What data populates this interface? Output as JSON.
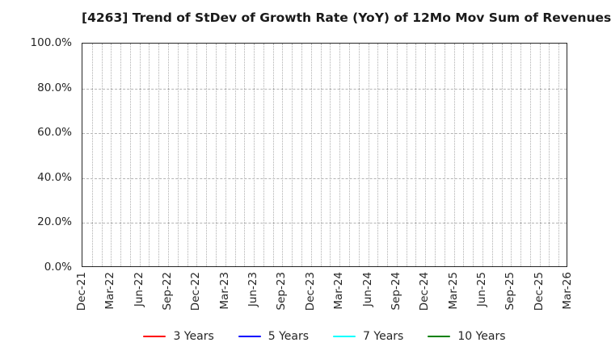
{
  "title": "[4263]  Trend of StDev of Growth Rate (YoY) of 12Mo Mov Sum of Revenues",
  "chart_data": {
    "type": "line",
    "title": "[4263]  Trend of StDev of Growth Rate (YoY) of 12Mo Mov Sum of Revenues",
    "x_tick_labels": [
      "Dec-21",
      "Mar-22",
      "Jun-22",
      "Sep-22",
      "Dec-22",
      "Mar-23",
      "Jun-23",
      "Sep-23",
      "Dec-23",
      "Mar-24",
      "Jun-24",
      "Sep-24",
      "Dec-24",
      "Mar-25",
      "Jun-25",
      "Sep-25",
      "Dec-25",
      "Mar-26"
    ],
    "x_minor_gridlines_per_label_interval": 3,
    "y_tick_labels": [
      "100.0%",
      "80.0%",
      "60.0%",
      "40.0%",
      "20.0%",
      "0.0%"
    ],
    "ylim": [
      0.0,
      100.0
    ],
    "ylabel": "",
    "xlabel": "",
    "grid": true,
    "legend_position": "bottom-center",
    "series": [
      {
        "name": "3 Years",
        "color": "#ff0000",
        "values": []
      },
      {
        "name": "5 Years",
        "color": "#0000ff",
        "values": []
      },
      {
        "name": "7 Years",
        "color": "#00ffff",
        "values": []
      },
      {
        "name": "10 Years",
        "color": "#008000",
        "values": []
      }
    ]
  },
  "legend": {
    "items": [
      {
        "label": "3 Years",
        "color": "#ff0000"
      },
      {
        "label": "5 Years",
        "color": "#0000ff"
      },
      {
        "label": "7 Years",
        "color": "#00ffff"
      },
      {
        "label": "10 Years",
        "color": "#008000"
      }
    ]
  },
  "colors": {
    "background": "#ffffff",
    "text": "#262626",
    "title_text": "#1a1a1a",
    "grid_minor_vertical": "#b0b0b0",
    "grid_major_horizontal": "#b4b4b4",
    "axis_spine": "#262626"
  }
}
